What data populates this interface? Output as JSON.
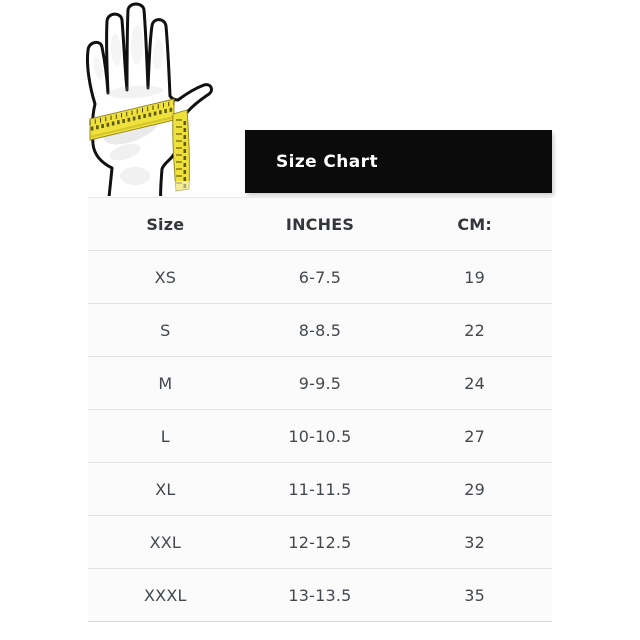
{
  "banner": {
    "title": "Size Chart"
  },
  "illustration": {
    "description": "open hand outline with a yellow measuring tape wrapped around the palm, tape tail hanging down",
    "tape_color": "#eee13b",
    "outline_color": "#111111"
  },
  "table": {
    "headers": [
      "Size",
      "INCHES",
      "CM:"
    ],
    "rows": [
      [
        "XS",
        "6-7.5",
        "19"
      ],
      [
        "S",
        "8-8.5",
        "22"
      ],
      [
        "M",
        "9-9.5",
        "24"
      ],
      [
        "L",
        "10-10.5",
        "27"
      ],
      [
        "XL",
        "11-11.5",
        "29"
      ],
      [
        "XXL",
        "12-12.5",
        "32"
      ],
      [
        "XXXL",
        "13-13.5",
        "35"
      ]
    ]
  },
  "colors": {
    "banner_bg": "#0b0b0b",
    "banner_text": "#ffffff",
    "table_bg": "#fbfbfb",
    "row_border": "#e3e3e3",
    "header_text": "#33373b",
    "cell_text": "#43484d",
    "tape_yellow": "#eee13b"
  },
  "chart_data": {
    "type": "table",
    "title": "Size Chart",
    "columns": [
      "Size",
      "INCHES",
      "CM:"
    ],
    "rows": [
      [
        "XS",
        "6-7.5",
        "19"
      ],
      [
        "S",
        "8-8.5",
        "22"
      ],
      [
        "M",
        "9-9.5",
        "24"
      ],
      [
        "L",
        "10-10.5",
        "27"
      ],
      [
        "XL",
        "11-11.5",
        "29"
      ],
      [
        "XXL",
        "12-12.5",
        "32"
      ],
      [
        "XXXL",
        "13-13.5",
        "35"
      ]
    ],
    "notes": "glove size chart; hand circumference in inches and centimeters"
  }
}
